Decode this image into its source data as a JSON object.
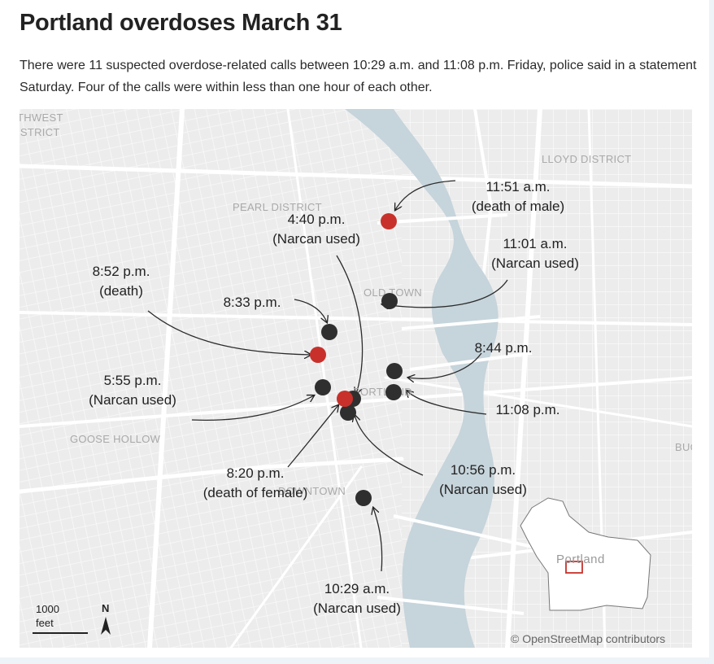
{
  "header": {
    "title": "Portland overdoses March 31",
    "subtitle": "There were 11 suspected overdose-related calls between 10:29 a.m. and 11:08 p.m. Friday, police said in a statement Saturday. Four of the calls were within less than one hour of each other."
  },
  "map": {
    "districts": {
      "northwest": "THWEST",
      "northwest2": "ISTRICT",
      "lloyd": "LLOYD DISTRICT",
      "pearl": "PEARL DISTRICT",
      "oldtown": "OLD TOWN",
      "portland": "PORTLAND",
      "goosehollow": "GOOSE HOLLOW",
      "downtown": "DOWNTOWN",
      "buckman": "BUC"
    },
    "calls": [
      {
        "time": "11:51 a.m.",
        "note": "(death of male)",
        "type": "death"
      },
      {
        "time": "4:40 p.m.",
        "note": "(Narcan used)",
        "type": "overdose"
      },
      {
        "time": "11:01 a.m.",
        "note": "(Narcan used)",
        "type": "overdose"
      },
      {
        "time": "8:52 p.m.",
        "note": "(death)",
        "type": "death"
      },
      {
        "time": "8:33 p.m.",
        "note": "",
        "type": "overdose"
      },
      {
        "time": "8:44 p.m.",
        "note": "",
        "type": "overdose"
      },
      {
        "time": "5:55 p.m.",
        "note": "(Narcan used)",
        "type": "overdose"
      },
      {
        "time": "11:08 p.m.",
        "note": "",
        "type": "overdose"
      },
      {
        "time": "10:56 p.m.",
        "note": "(Narcan used)",
        "type": "overdose"
      },
      {
        "time": "8:20 p.m.",
        "note": "(death of female)",
        "type": "death"
      },
      {
        "time": "10:29 a.m.",
        "note": "(Narcan used)",
        "type": "overdose"
      }
    ],
    "colors": {
      "death": "#c8312b",
      "overdose": "#2f2f2f",
      "water": "#c6d4db",
      "land": "#ececec"
    },
    "scale": {
      "value": "1000",
      "unit": "feet"
    },
    "north": "N",
    "inset_label": "Portland",
    "credit": "© OpenStreetMap contributors"
  }
}
